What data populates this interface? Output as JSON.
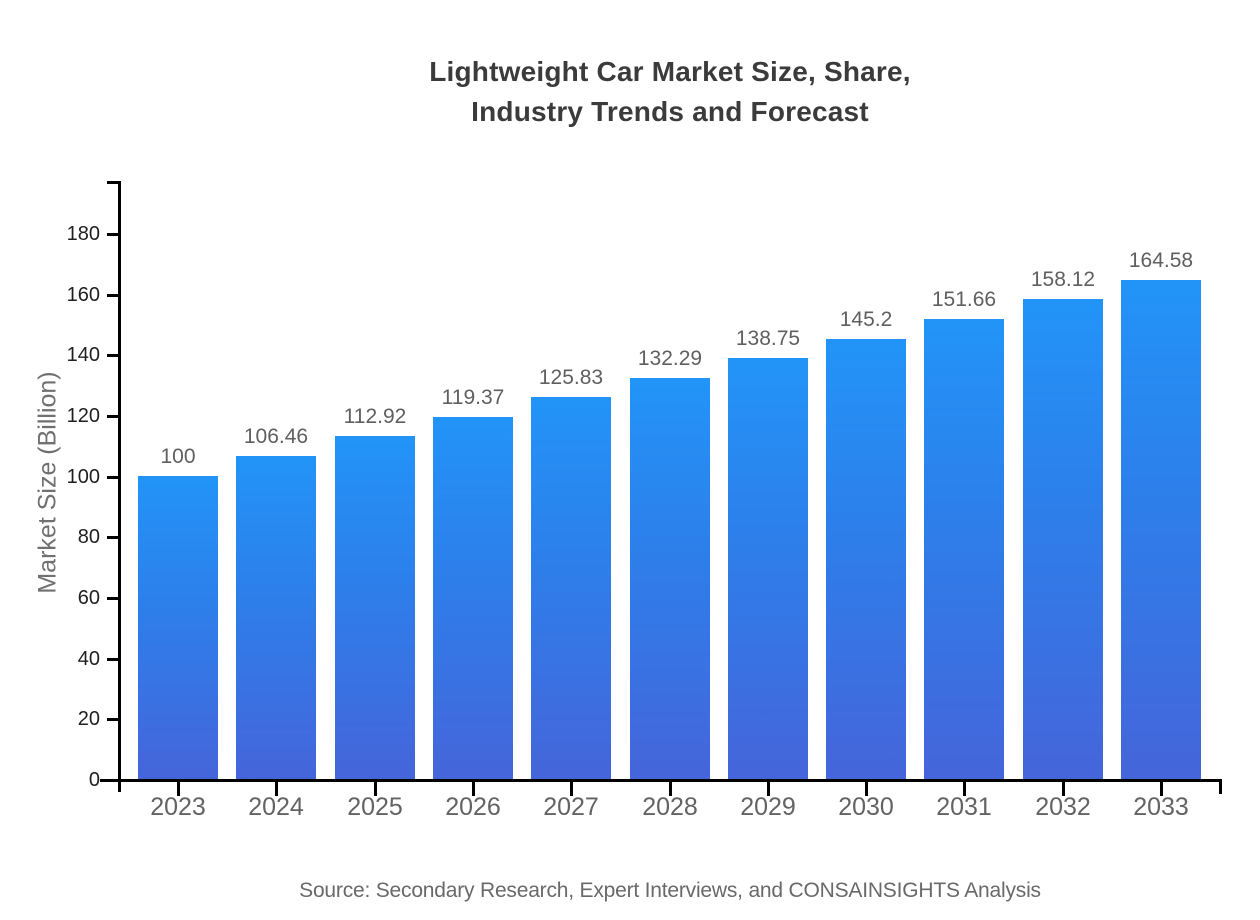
{
  "header": {
    "title_line1": "Lightweight Car Market Size, Share,",
    "title_line2": "Industry Trends and Forecast"
  },
  "chart_data": {
    "type": "bar",
    "title": "Lightweight Car Market Size, Share, Industry Trends and Forecast",
    "categories": [
      "2023",
      "2024",
      "2025",
      "2026",
      "2027",
      "2028",
      "2029",
      "2030",
      "2031",
      "2032",
      "2033"
    ],
    "values": [
      100,
      106.46,
      112.92,
      119.37,
      125.83,
      132.29,
      138.75,
      145.2,
      151.66,
      158.12,
      164.58
    ],
    "xlabel": "",
    "ylabel": "Market Size (Billion)",
    "ylim": [
      0,
      197
    ],
    "yticks": [
      0,
      20,
      40,
      60,
      80,
      100,
      120,
      140,
      160,
      180
    ],
    "grid": false,
    "legend_position": "none",
    "bar_color_top": "#2294f8",
    "bar_color_bottom": "#4565da",
    "axis_color": "#000000"
  },
  "footer": {
    "source": "Source: Secondary Research, Expert Interviews, and CONSAINSIGHTS Analysis"
  }
}
